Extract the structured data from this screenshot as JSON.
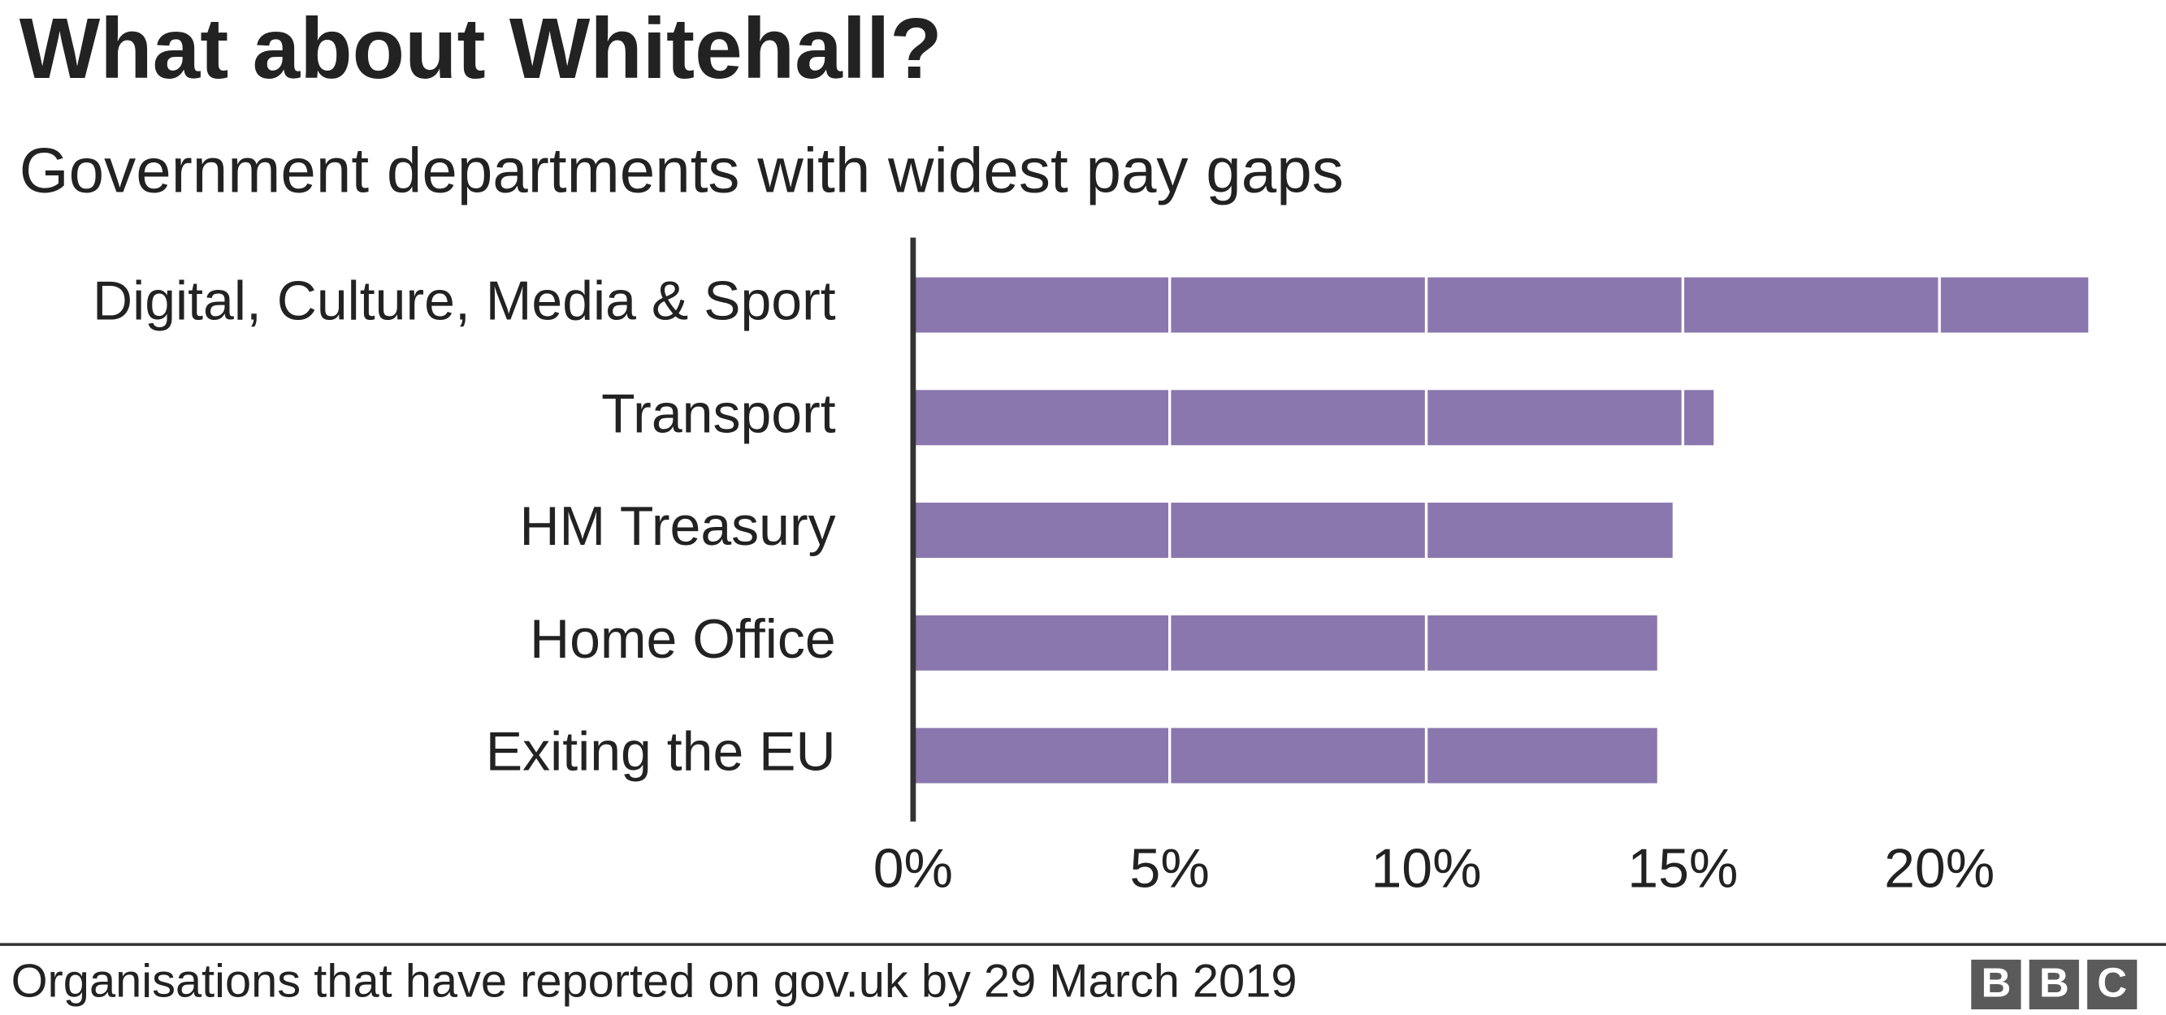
{
  "chart_data": {
    "type": "barh",
    "title": "What about Whitehall?",
    "subtitle": "Government departments with widest pay gaps",
    "categories": [
      "Digital, Culture, Media & Sport",
      "Transport",
      "HM Treasury",
      "Home Office",
      "Exiting the EU"
    ],
    "values": [
      22.9,
      15.6,
      14.8,
      14.5,
      14.5
    ],
    "color": "#8a77ad",
    "xlim": [
      0,
      23
    ],
    "xticks": [
      {
        "value": 0,
        "label": "0%"
      },
      {
        "value": 5,
        "label": "5%"
      },
      {
        "value": 10,
        "label": "10%"
      },
      {
        "value": 15,
        "label": "15%"
      },
      {
        "value": 20,
        "label": "20%"
      }
    ],
    "grid": true,
    "footnote": "Organisations that have reported on gov.uk by 29 March 2019",
    "logo": [
      "B",
      "B",
      "C"
    ]
  }
}
